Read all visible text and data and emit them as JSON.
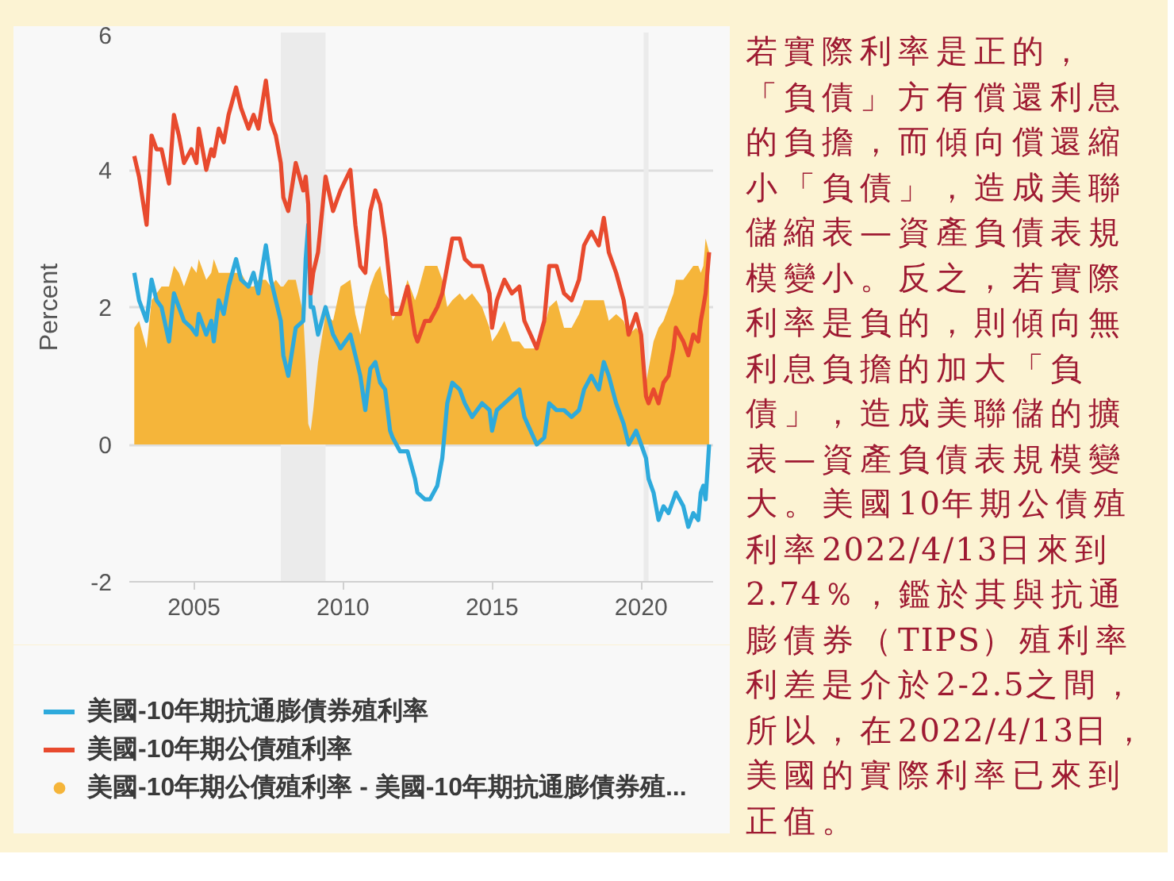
{
  "chart_data": {
    "type": "line",
    "ylabel": "Percent",
    "x": [
      "2003-01",
      "2003-03",
      "2003-06",
      "2003-08",
      "2003-10",
      "2003-12",
      "2004-03",
      "2004-05",
      "2004-07",
      "2004-09",
      "2004-12",
      "2005-02",
      "2005-03",
      "2005-06",
      "2005-08",
      "2005-09",
      "2005-11",
      "2006-01",
      "2006-03",
      "2006-06",
      "2006-08",
      "2006-11",
      "2007-01",
      "2007-03",
      "2007-06",
      "2007-08",
      "2007-10",
      "2007-12",
      "2008-01",
      "2008-03",
      "2008-06",
      "2008-09",
      "2008-10",
      "2008-11",
      "2008-12",
      "2009-01",
      "2009-03",
      "2009-06",
      "2009-09",
      "2009-12",
      "2010-04",
      "2010-06",
      "2010-08",
      "2010-10",
      "2010-12",
      "2011-02",
      "2011-04",
      "2011-06",
      "2011-08",
      "2011-09",
      "2011-12",
      "2012-03",
      "2012-06",
      "2012-07",
      "2012-10",
      "2012-12",
      "2013-03",
      "2013-05",
      "2013-07",
      "2013-09",
      "2013-12",
      "2014-02",
      "2014-05",
      "2014-09",
      "2014-12",
      "2015-01",
      "2015-03",
      "2015-06",
      "2015-09",
      "2015-12",
      "2016-02",
      "2016-07",
      "2016-10",
      "2016-12",
      "2017-03",
      "2017-06",
      "2017-09",
      "2017-12",
      "2018-02",
      "2018-05",
      "2018-08",
      "2018-10",
      "2018-12",
      "2019-03",
      "2019-06",
      "2019-08",
      "2019-11",
      "2020-01",
      "2020-03",
      "2020-04",
      "2020-06",
      "2020-08",
      "2020-10",
      "2020-12",
      "2021-02",
      "2021-03",
      "2021-06",
      "2021-08",
      "2021-10",
      "2021-12",
      "2022-01",
      "2022-02",
      "2022-03",
      "2022-04-13"
    ],
    "series": [
      {
        "name": "美國-10年期抗通膨債券殖利率",
        "color": "#2eaadc",
        "values": [
          2.5,
          2.1,
          1.8,
          2.4,
          2.1,
          2.0,
          1.5,
          2.2,
          2.0,
          1.8,
          1.7,
          1.6,
          1.9,
          1.6,
          1.8,
          1.5,
          2.1,
          1.9,
          2.3,
          2.7,
          2.4,
          2.3,
          2.5,
          2.2,
          2.9,
          2.4,
          2.1,
          1.8,
          1.3,
          1.0,
          1.7,
          1.8,
          2.7,
          3.2,
          2.0,
          2.0,
          1.6,
          2.0,
          1.6,
          1.4,
          1.6,
          1.3,
          1.0,
          0.5,
          1.1,
          1.2,
          0.9,
          0.8,
          0.2,
          0.1,
          -0.1,
          -0.1,
          -0.5,
          -0.7,
          -0.8,
          -0.8,
          -0.6,
          -0.2,
          0.6,
          0.9,
          0.8,
          0.6,
          0.4,
          0.6,
          0.5,
          0.2,
          0.5,
          0.6,
          0.7,
          0.8,
          0.4,
          0.0,
          0.1,
          0.6,
          0.5,
          0.5,
          0.4,
          0.5,
          0.8,
          1.0,
          0.8,
          1.2,
          1.0,
          0.6,
          0.3,
          0.0,
          0.2,
          0.0,
          -0.2,
          -0.5,
          -0.7,
          -1.1,
          -0.9,
          -1.0,
          -0.8,
          -0.7,
          -0.9,
          -1.2,
          -1.0,
          -1.1,
          -0.7,
          -0.6,
          -0.8,
          0.0
        ]
      },
      {
        "name": "美國-10年期公債殖利率",
        "color": "#e84a2e",
        "values": [
          4.2,
          3.9,
          3.2,
          4.5,
          4.3,
          4.3,
          3.8,
          4.8,
          4.5,
          4.1,
          4.3,
          4.1,
          4.6,
          4.0,
          4.3,
          4.2,
          4.6,
          4.4,
          4.8,
          5.2,
          4.9,
          4.6,
          4.8,
          4.6,
          5.3,
          4.7,
          4.5,
          4.1,
          3.6,
          3.4,
          4.1,
          3.7,
          3.9,
          3.5,
          2.2,
          2.5,
          2.8,
          3.9,
          3.4,
          3.7,
          4.0,
          3.2,
          2.6,
          2.5,
          3.4,
          3.7,
          3.5,
          3.0,
          2.3,
          1.9,
          1.9,
          2.3,
          1.6,
          1.5,
          1.8,
          1.8,
          2.0,
          2.2,
          2.6,
          3.0,
          3.0,
          2.7,
          2.6,
          2.6,
          2.2,
          1.7,
          2.1,
          2.4,
          2.2,
          2.3,
          1.8,
          1.4,
          1.8,
          2.6,
          2.6,
          2.2,
          2.1,
          2.4,
          2.9,
          3.1,
          2.9,
          3.3,
          2.8,
          2.5,
          2.1,
          1.6,
          1.9,
          1.6,
          0.7,
          0.6,
          0.8,
          0.6,
          0.9,
          1.0,
          1.4,
          1.7,
          1.5,
          1.3,
          1.6,
          1.5,
          1.8,
          2.0,
          2.2,
          2.8
        ]
      },
      {
        "name": "美國-10年期公債殖利率 - 美國-10年期抗通膨債券殖...",
        "type": "area",
        "color": "#f5b53a",
        "values": [
          1.7,
          1.8,
          1.4,
          2.1,
          2.2,
          2.3,
          2.3,
          2.6,
          2.5,
          2.3,
          2.6,
          2.5,
          2.7,
          2.4,
          2.5,
          2.7,
          2.5,
          2.5,
          2.5,
          2.5,
          2.5,
          2.3,
          2.3,
          2.4,
          2.4,
          2.3,
          2.4,
          2.3,
          2.3,
          2.4,
          2.4,
          1.9,
          1.2,
          0.3,
          0.2,
          0.5,
          1.2,
          1.9,
          1.8,
          2.3,
          2.4,
          1.9,
          1.6,
          2.0,
          2.3,
          2.5,
          2.6,
          2.2,
          2.1,
          1.8,
          2.0,
          2.4,
          2.1,
          2.2,
          2.6,
          2.6,
          2.6,
          2.4,
          2.0,
          2.1,
          2.2,
          2.1,
          2.2,
          2.0,
          1.7,
          1.5,
          1.6,
          1.8,
          1.5,
          1.5,
          1.4,
          1.4,
          1.7,
          2.0,
          2.1,
          1.7,
          1.7,
          1.9,
          2.1,
          2.1,
          2.1,
          2.1,
          1.8,
          1.9,
          1.8,
          1.6,
          1.7,
          1.6,
          0.9,
          1.1,
          1.5,
          1.7,
          1.8,
          2.0,
          2.2,
          2.4,
          2.4,
          2.5,
          2.6,
          2.6,
          2.5,
          2.6,
          3.0,
          2.8
        ]
      }
    ],
    "xlim": [
      "2002-11",
      "2022-06"
    ],
    "xticks": [
      "2005",
      "2010",
      "2015",
      "2020"
    ],
    "ylim": [
      -2,
      6
    ],
    "yticks": [
      -2,
      0,
      2,
      4,
      6
    ],
    "bands": [
      {
        "axis": "x",
        "from": "2007-12",
        "to": "2009-06",
        "color": "#ebebeb"
      },
      {
        "axis": "x",
        "from": "2020-02",
        "to": "2020-04",
        "color": "#ebebeb"
      }
    ],
    "grid": "y",
    "legend": "bottom",
    "annotations": [
      "若實際利率是正的，「負債」方有償還利息的負擔，而傾向償還縮小「負債」，造成美聯儲縮表—資產負債表規模變小。反之，若實際利率是負的，則傾向無利息負擔的加大「負債」，造成美聯儲的擴表—資產負債表規模變大。美國10年期公債殖利率2022/4/13日來到2.74％，鑑於其與抗通膨債券（TIPS）殖利率利差是介於2-2.5之間，所以，在2022/4/13日，美國的實際利率已來到正值。"
    ]
  }
}
